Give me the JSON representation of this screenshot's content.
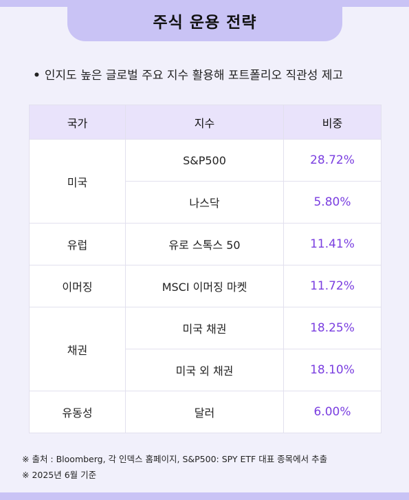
{
  "title": "주식 운용 전략",
  "subtitle": {
    "bullet": "•",
    "text": "인지도 높은 글로벌 주요 지수 활용해 포트폴리오 직관성 제고"
  },
  "table": {
    "headers": {
      "country": "국가",
      "index": "지수",
      "weight": "비중"
    },
    "groups": {
      "us": {
        "label": "미국",
        "rows": [
          {
            "index": "S&P500",
            "weight": "28.72%"
          },
          {
            "index": "나스닥",
            "weight": "5.80%"
          }
        ]
      },
      "europe": {
        "label": "유럽",
        "rows": [
          {
            "index": "유로 스톡스 50",
            "weight": "11.41%"
          }
        ]
      },
      "emerging": {
        "label": "이머징",
        "rows": [
          {
            "index": "MSCI 이머징 마켓",
            "weight": "11.72%"
          }
        ]
      },
      "bonds": {
        "label": "채권",
        "rows": [
          {
            "index": "미국 채권",
            "weight": "18.25%"
          },
          {
            "index": "미국 외 채권",
            "weight": "18.10%"
          }
        ]
      },
      "liquidity": {
        "label": "유동성",
        "rows": [
          {
            "index": "달러",
            "weight": "6.00%"
          }
        ]
      }
    }
  },
  "notes": [
    "※ 출처 : Bloomberg, 각 인덱스 홈페이지, S&P500: SPY ETF 대표 종목에서 추출",
    "※ 2025년 6월 기준"
  ],
  "colors": {
    "background": "#f1f0fb",
    "accent_band": "#c9c3f5",
    "header_row": "#e9e3fb",
    "percent_text": "#7a3ee0"
  }
}
